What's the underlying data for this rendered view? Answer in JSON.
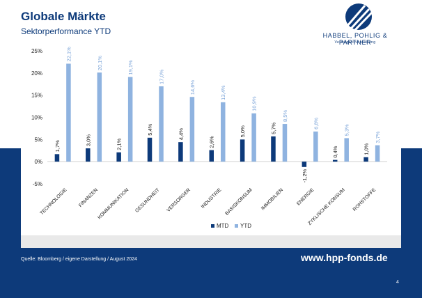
{
  "header": {
    "title": "Globale Märkte",
    "subtitle": "Sektorperformance YTD"
  },
  "logo": {
    "name": "HABBEL, POHLIG & PARTNER",
    "tagline": "Vermögensverwaltung"
  },
  "colors": {
    "brand": "#0d3a7a",
    "mtd": "#0d3a7a",
    "ytd": "#8fb3e0"
  },
  "chart_data": {
    "type": "bar",
    "title": "",
    "xlabel": "",
    "ylabel": "",
    "ylim": [
      -5,
      25
    ],
    "yticks": [
      "-5%",
      "0%",
      "5%",
      "10%",
      "15%",
      "20%",
      "25%"
    ],
    "ytick_values": [
      -5,
      0,
      5,
      10,
      15,
      20,
      25
    ],
    "grid": false,
    "legend_position": "bottom",
    "categories": [
      "TECHNOLOGIE",
      "FINANZEN",
      "KOMMUNIKATION",
      "GESUNDHEIT",
      "VERSORGER",
      "INDUSTRIE",
      "BASISKONSUM",
      "IMMOBILIEN",
      "ENERGIE",
      "ZYKLISCHE KONSUM",
      "ROHSTOFFE"
    ],
    "series": [
      {
        "name": "MTD",
        "values": [
          1.7,
          3.0,
          2.1,
          5.4,
          4.4,
          2.6,
          5.0,
          5.7,
          -1.2,
          0.4,
          1.0
        ],
        "labels": [
          "1,7%",
          "3,0%",
          "2,1%",
          "5,4%",
          "4,4%",
          "2,6%",
          "5,0%",
          "5,7%",
          "-1,2%",
          "0,4%",
          "1,0%"
        ]
      },
      {
        "name": "YTD",
        "values": [
          22.1,
          20.1,
          19.1,
          17.0,
          14.6,
          13.4,
          10.9,
          8.5,
          6.8,
          5.3,
          3.7
        ],
        "labels": [
          "22,1%",
          "20,1%",
          "19,1%",
          "17,0%",
          "14,6%",
          "13,4%",
          "10,9%",
          "8,5%",
          "6,8%",
          "5,3%",
          "3,7%"
        ]
      }
    ]
  },
  "footer": {
    "source": "Quelle: Bloomberg / eigene Darstellung / August 2024",
    "website": "www.hpp-fonds.de",
    "page_number": "4"
  }
}
